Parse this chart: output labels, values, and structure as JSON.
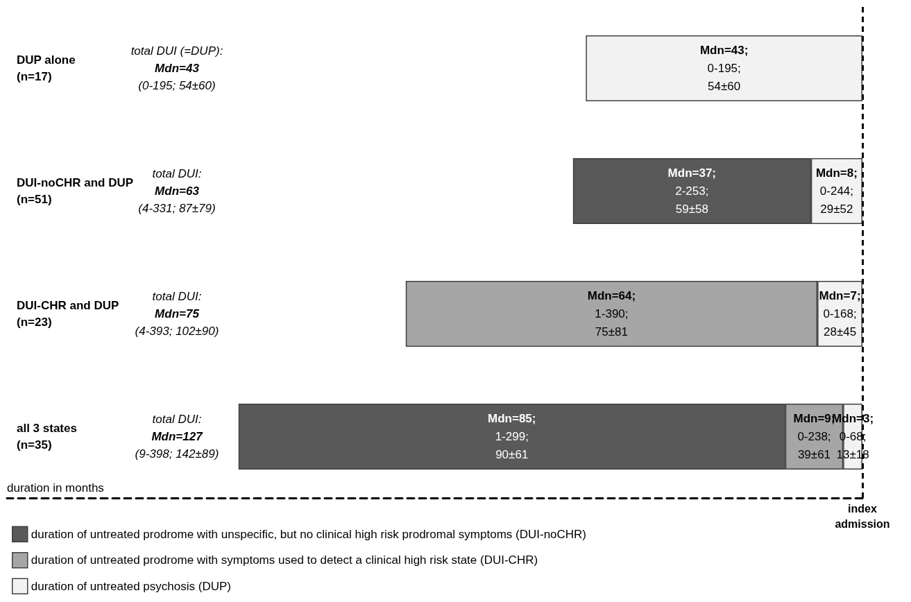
{
  "chart_data": {
    "type": "bar",
    "orientation": "horizontal",
    "stacked": true,
    "categories": [
      "DUP alone\n(n=17)",
      "DUI-noCHR and DUP\n(n=51)",
      "DUI-CHR and DUP\n(n=23)",
      "all 3 states\n(n=35)"
    ],
    "series": [
      {
        "name": "duration of untreated psychosis (DUP)",
        "color": "#f2f2f2",
        "values": [
          43,
          8,
          7,
          3
        ],
        "value_labels": [
          "Mdn=43;\n0-195;\n54±60",
          "Mdn=8;\n0-244;\n29±52",
          "Mdn=7;\n0-168;\n28±45",
          "Mdn=3;\n0-68;\n13±18"
        ]
      },
      {
        "name": "duration of untreated prodrome with symptoms used to detect a clinical high risk state (DUI-CHR)",
        "color": "#a6a6a6",
        "values": [
          null,
          null,
          64,
          9
        ],
        "value_labels": [
          null,
          null,
          "Mdn=64;\n1-390;\n75±81",
          "Mdn=9;\n0-238;\n39±61"
        ]
      },
      {
        "name": "duration of untreated prodrome with unspecific, but no clinical high risk prodromal symptoms (DUI-noCHR)",
        "color": "#595959",
        "values": [
          null,
          37,
          null,
          85
        ],
        "value_labels": [
          null,
          "Mdn=37;\n2-253;\n59±58",
          null,
          "Mdn=85;\n1-299;\n90±61"
        ]
      }
    ],
    "xlim": [
      133,
      0
    ],
    "xlabel": "duration in months",
    "ref_lines": [
      {
        "axis": "x",
        "value": 0,
        "label": "index\nadmission",
        "color": "#000000",
        "line_style": "dashed"
      }
    ],
    "annotations": [
      "total DUI (=DUP):\nMdn=43\n(0-195; 54±60)",
      "total DUI:\nMdn=63\n(4-331; 87±79)",
      "total DUI:\nMdn=75\n(4-393; 102±90)",
      "total DUI:\nMdn=127\n(9-398; 142±89)"
    ],
    "legend": "bottom left",
    "grid": false
  }
}
